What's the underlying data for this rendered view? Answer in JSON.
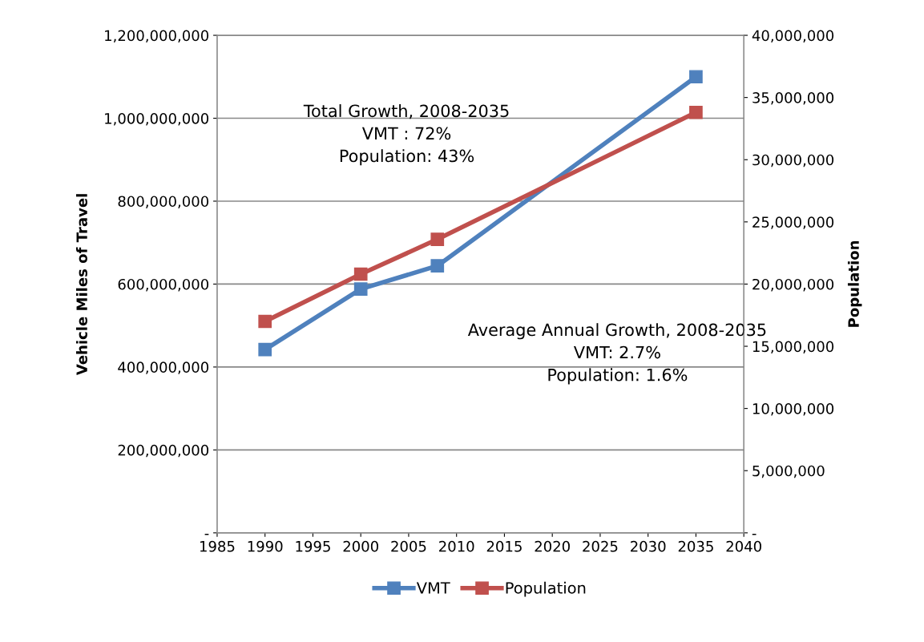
{
  "chart_data": {
    "type": "line",
    "xlabel": null,
    "ylabel": "Vehicle Miles of Travel",
    "y2label": "Population",
    "x": [
      1990,
      2000,
      2008,
      2035
    ],
    "series": [
      {
        "name": "VMT",
        "color": "#4f81bd",
        "values": [
          442000000,
          588000000,
          644000000,
          1100000000
        ]
      },
      {
        "name": "Population",
        "color": "#c0504d",
        "axis": "y2",
        "values": [
          17000000,
          20800000,
          23600000,
          33800000
        ]
      }
    ],
    "xlim": [
      1985,
      2040
    ],
    "xticks": [
      1985,
      1990,
      1995,
      2000,
      2005,
      2010,
      2015,
      2020,
      2025,
      2030,
      2035,
      2040
    ],
    "ylim": [
      0,
      1200000000
    ],
    "yticks": [
      {
        "value": 0,
        "label": "-"
      },
      {
        "value": 200000000,
        "label": "200,000,000"
      },
      {
        "value": 400000000,
        "label": "400,000,000"
      },
      {
        "value": 600000000,
        "label": "600,000,000"
      },
      {
        "value": 800000000,
        "label": "800,000,000"
      },
      {
        "value": 1000000000,
        "label": "1,000,000,000"
      },
      {
        "value": 1200000000,
        "label": "1,200,000,000"
      }
    ],
    "y2lim": [
      0,
      40000000
    ],
    "y2ticks": [
      {
        "value": 0,
        "label": "-"
      },
      {
        "value": 5000000,
        "label": "5,000,000"
      },
      {
        "value": 10000000,
        "label": "10,000,000"
      },
      {
        "value": 15000000,
        "label": "15,000,000"
      },
      {
        "value": 20000000,
        "label": "20,000,000"
      },
      {
        "value": 25000000,
        "label": "25,000,000"
      },
      {
        "value": 30000000,
        "label": "30,000,000"
      },
      {
        "value": 35000000,
        "label": "35,000,000"
      },
      {
        "value": 40000000,
        "label": "40,000,000"
      }
    ],
    "annotations": [
      "Total Growth, 2008-2035\nVMT : 72%\nPopulation: 43%",
      "Average Annual Growth, 2008-2035\nVMT: 2.7%\nPopulation: 1.6%"
    ],
    "grid": "y",
    "legend": "bottom",
    "marker": "square",
    "line_style": "solid"
  }
}
